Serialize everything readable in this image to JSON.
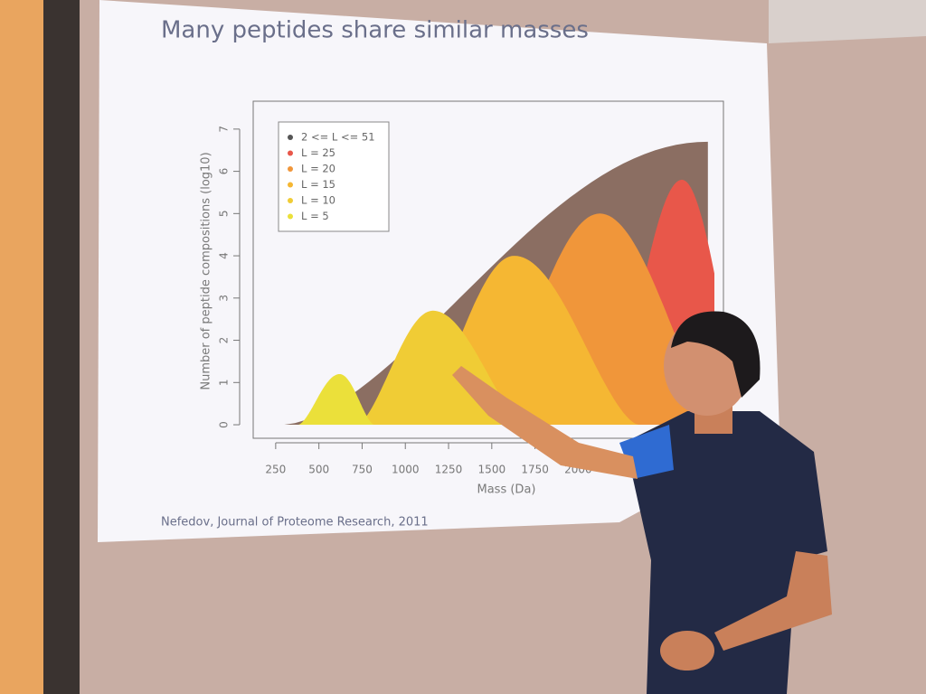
{
  "slide": {
    "title": "Many peptides share similar masses",
    "citation": "Nefedov, Journal of Proteome Research, 2011",
    "chart": {
      "type": "area",
      "y_label": "Number of peptide compositions (log10)",
      "x_label": "Mass (Da)",
      "xlim": [
        120,
        2840
      ],
      "ylim": [
        -0.32,
        7.66
      ],
      "xticks": [
        250,
        500,
        750,
        1000,
        1250,
        1500,
        1750,
        2000
      ],
      "yticks": [
        0,
        1,
        2,
        3,
        4,
        5,
        6,
        7
      ],
      "series": [
        {
          "name": "2 <= L <= 51",
          "color": "#8b6e62",
          "dot": "#555555",
          "range": [
            300,
            2750
          ],
          "peak": [
            2750,
            6.7
          ]
        },
        {
          "name": "L = 25",
          "color": "#e8574a",
          "dot": "#e8574a",
          "range": [
            2150,
            3000
          ],
          "peak": [
            2600,
            5.8
          ]
        },
        {
          "name": "L = 20",
          "color": "#f0963a",
          "dot": "#f0963a",
          "range": [
            1420,
            2850
          ],
          "peak": [
            2125,
            5.0
          ]
        },
        {
          "name": "L = 15",
          "color": "#f5b733",
          "dot": "#f5b733",
          "range": [
            1050,
            2350
          ],
          "peak": [
            1630,
            4.0
          ]
        },
        {
          "name": "L = 10",
          "color": "#f0cc35",
          "dot": "#f0cc35",
          "range": [
            720,
            1700
          ],
          "peak": [
            1160,
            2.7
          ]
        },
        {
          "name": "L = 5",
          "color": "#ebe03a",
          "dot": "#ebe03a",
          "range": [
            380,
            820
          ],
          "peak": [
            620,
            1.2
          ]
        }
      ]
    }
  }
}
